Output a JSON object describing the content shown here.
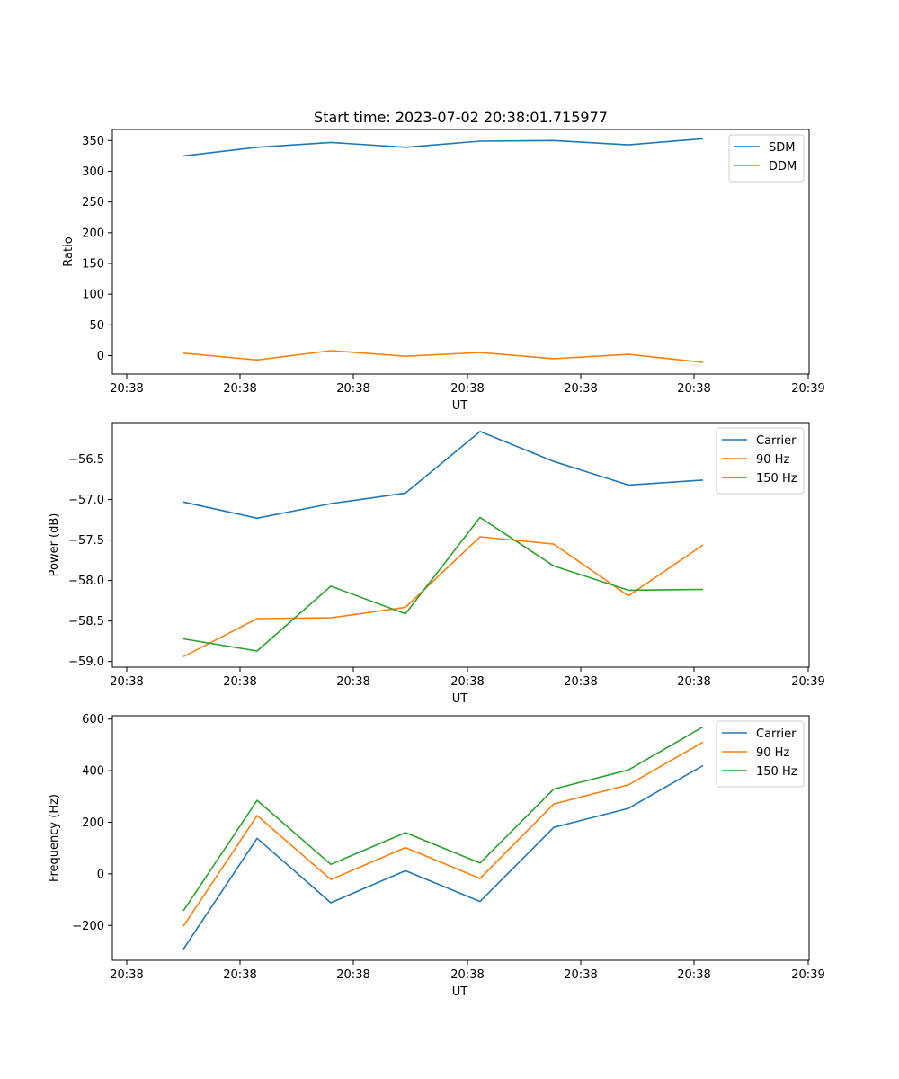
{
  "chart_data": [
    {
      "type": "line",
      "title": "Start time: 2023-07-02 20:38:01.715977",
      "xlabel": "UT",
      "ylabel": "Ratio",
      "x_tick_labels": [
        "20:38",
        "20:38",
        "20:38",
        "20:38",
        "20:38",
        "20:38",
        "20:38",
        "20:39"
      ],
      "y_ticks": [
        0,
        50,
        100,
        150,
        200,
        250,
        300,
        350
      ],
      "ylim": [
        -30,
        368
      ],
      "x": [
        1,
        2,
        3,
        4,
        5,
        6,
        7,
        8
      ],
      "series": [
        {
          "name": "SDM",
          "color": "#1f77b4",
          "values": [
            325,
            339,
            347,
            339,
            349,
            350,
            343,
            353
          ]
        },
        {
          "name": "DDM",
          "color": "#ff7f0e",
          "values": [
            4,
            -7,
            8,
            -1,
            5,
            -5,
            2,
            -11
          ]
        }
      ],
      "legend": "top-right"
    },
    {
      "type": "line",
      "title": "",
      "xlabel": "UT",
      "ylabel": "Power (dB)",
      "x_tick_labels": [
        "20:38",
        "20:38",
        "20:38",
        "20:38",
        "20:38",
        "20:38",
        "20:38",
        "20:39"
      ],
      "y_ticks": [
        -59.0,
        -58.5,
        -58.0,
        -57.5,
        -57.0,
        -56.5
      ],
      "y_tick_labels": [
        "−59.0",
        "−58.5",
        "−58.0",
        "−57.5",
        "−57.0",
        "−56.5"
      ],
      "ylim": [
        -59.07,
        -56.05
      ],
      "x": [
        1,
        2,
        3,
        4,
        5,
        6,
        7,
        8
      ],
      "series": [
        {
          "name": "Carrier",
          "color": "#1f77b4",
          "values": [
            -57.03,
            -57.23,
            -57.05,
            -56.92,
            -56.16,
            -56.53,
            -56.82,
            -56.76
          ]
        },
        {
          "name": "90 Hz",
          "color": "#ff7f0e",
          "values": [
            -58.94,
            -58.47,
            -58.46,
            -58.33,
            -57.46,
            -57.55,
            -58.19,
            -57.56
          ]
        },
        {
          "name": "150 Hz",
          "color": "#2ca02c",
          "values": [
            -58.72,
            -58.87,
            -58.07,
            -58.41,
            -57.22,
            -57.82,
            -58.12,
            -58.11
          ]
        }
      ],
      "legend": "top-right"
    },
    {
      "type": "line",
      "title": "",
      "xlabel": "UT",
      "ylabel": "Frequency (Hz)",
      "x_tick_labels": [
        "20:38",
        "20:38",
        "20:38",
        "20:38",
        "20:38",
        "20:38",
        "20:38",
        "20:39"
      ],
      "y_ticks": [
        -200,
        0,
        200,
        400,
        600
      ],
      "y_tick_labels": [
        "−200",
        "0",
        "200",
        "400",
        "600"
      ],
      "ylim": [
        -335,
        613
      ],
      "x": [
        1,
        2,
        3,
        4,
        5,
        6,
        7,
        8
      ],
      "series": [
        {
          "name": "Carrier",
          "color": "#1f77b4",
          "values": [
            -292,
            138,
            -112,
            12,
            -107,
            180,
            254,
            420
          ]
        },
        {
          "name": "90 Hz",
          "color": "#ff7f0e",
          "values": [
            -203,
            226,
            -22,
            102,
            -18,
            271,
            345,
            511
          ]
        },
        {
          "name": "150 Hz",
          "color": "#2ca02c",
          "values": [
            -143,
            285,
            37,
            160,
            42,
            329,
            403,
            570
          ]
        }
      ],
      "legend": "top-right"
    }
  ]
}
